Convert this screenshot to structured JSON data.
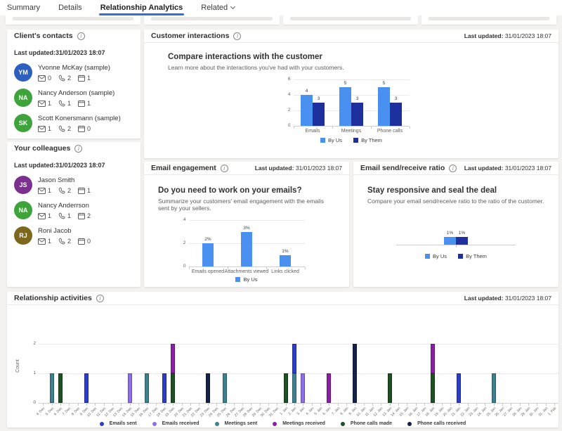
{
  "accent": "#2f6fdb",
  "tabs": [
    {
      "label": "Summary",
      "active": false
    },
    {
      "label": "Details",
      "active": false
    },
    {
      "label": "Relationship Analytics",
      "active": true
    },
    {
      "label": "Related",
      "active": false,
      "chevron": true
    }
  ],
  "clients_contacts": {
    "title": "Client's contacts",
    "last_updated": "Last updated:31/01/2023 18:07",
    "contacts": [
      {
        "initials": "YM",
        "color": "#2c5fbe",
        "name": "Yvonne McKay (sample)",
        "emails": "0",
        "calls": "2",
        "meetings": "1"
      },
      {
        "initials": "NA",
        "color": "#3fa33c",
        "name": "Nancy Anderson (sample)",
        "emails": "1",
        "calls": "1",
        "meetings": "1"
      },
      {
        "initials": "SK",
        "color": "#3fa33c",
        "name": "Scott Konersmann (sample)",
        "emails": "1",
        "calls": "2",
        "meetings": "0"
      }
    ]
  },
  "your_colleagues": {
    "title": "Your colleagues",
    "last_updated": "Last updated:31/01/2023 18:07",
    "contacts": [
      {
        "initials": "JS",
        "color": "#7b2f8e",
        "name": "Jason Smith",
        "emails": "1",
        "calls": "2",
        "meetings": "1"
      },
      {
        "initials": "NA",
        "color": "#3fa33c",
        "name": "Nancy Anderrson",
        "emails": "1",
        "calls": "1",
        "meetings": "2"
      },
      {
        "initials": "RJ",
        "color": "#7d671c",
        "name": "Roni Jacob",
        "emails": "1",
        "calls": "2",
        "meetings": "0"
      }
    ]
  },
  "customer_interactions": {
    "title": "Customer interactions",
    "updated_label": "Last updated:",
    "updated_value": "31/01/2023 18:07",
    "headline": "Compare interactions with the customer",
    "desc": "Learn more about the interactions you've had with your customers."
  },
  "email_engagement": {
    "title": "Email engagement",
    "updated_label": "Last updated:",
    "updated_value": "31/01/2023 18:07",
    "headline": "Do you need to work on your emails?",
    "desc": "Summarize your customers' email engagement with the emails sent by your sellers."
  },
  "send_receive": {
    "title": "Email send/receive ratio",
    "updated_label": "Last updated:",
    "updated_value": "31/01/2023 18:07",
    "headline": "Stay responsive and seal the deal",
    "desc": "Compare your email send/receive ratio to the ratio of the customer."
  },
  "relationship_activities": {
    "title": "Relationship activities",
    "updated_label": "Last updated:",
    "updated_value": "31/01/2023 18:07"
  },
  "chart_data": [
    {
      "id": "customer_interactions",
      "type": "bar",
      "title": "Compare interactions with the customer",
      "categories": [
        "Emails",
        "Meetings",
        "Phone calls"
      ],
      "series": [
        {
          "name": "By Us",
          "color": "#4a90f0",
          "values": [
            4,
            5,
            5
          ],
          "labels": [
            "4",
            "5",
            "5"
          ]
        },
        {
          "name": "By Them",
          "color": "#1e2f9e",
          "values": [
            3,
            3,
            3
          ],
          "labels": [
            "3",
            "3",
            "3"
          ]
        }
      ],
      "ylim": [
        0,
        6
      ],
      "yticks": [
        0,
        2,
        4,
        6
      ],
      "grid": true,
      "legend_position": "bottom"
    },
    {
      "id": "email_engagement",
      "type": "bar",
      "title": "Do you need to work on your emails?",
      "categories": [
        "Emails opened",
        "Attachments viewed",
        "Links clicked"
      ],
      "series": [
        {
          "name": "By Us",
          "color": "#4a90f0",
          "values": [
            2,
            3,
            1
          ],
          "labels": [
            "2%",
            "3%",
            "1%"
          ]
        }
      ],
      "ylim": [
        0,
        4
      ],
      "yticks": [
        0,
        2,
        4
      ],
      "grid": true,
      "legend_position": "bottom"
    },
    {
      "id": "send_receive_ratio",
      "type": "bar",
      "title": "Stay responsive and seal the deal",
      "categories": [
        ""
      ],
      "series": [
        {
          "name": "By Us",
          "color": "#4a90f0",
          "values": [
            1
          ],
          "labels": [
            "1%"
          ]
        },
        {
          "name": "By Them",
          "color": "#1e2f9e",
          "values": [
            1
          ],
          "labels": [
            "1%"
          ]
        }
      ],
      "ylim": [
        0,
        2.4
      ],
      "yticks": [],
      "grid": false,
      "legend_position": "bottom"
    },
    {
      "id": "relationship_activities",
      "type": "bar",
      "title": "Relationship activities",
      "ylabel": "Count",
      "ylim": [
        0,
        2.4
      ],
      "yticks": [
        0,
        1,
        2
      ],
      "grid": true,
      "legend_position": "bottom",
      "categories": [
        "4. Dec",
        "5. Dec",
        "6. Dec",
        "7. Dec",
        "8. Dec",
        "9. Dec",
        "10. Dec",
        "11. Dec",
        "12. Dec",
        "13. Dec",
        "14. Dec",
        "15. Dec",
        "16. Dec",
        "17. Dec",
        "18. Dec",
        "19. Dec",
        "20. Dec",
        "21. Dec",
        "22. Dec",
        "23. Dec",
        "24. Dec",
        "25. Dec",
        "26. Dec",
        "27. Dec",
        "28. Dec",
        "29. Dec",
        "30. Dec",
        "31. Dec",
        "1. Jan",
        "2. Jan",
        "3. Jan",
        "4. Jan",
        "5. Jan",
        "6. Jan",
        "7. Jan",
        "8. Jan",
        "9. Jan",
        "10. Jan",
        "11. Jan",
        "12. Jan",
        "13. Jan",
        "14. Jan",
        "15. Jan",
        "16. Jan",
        "17. Jan",
        "18. Jan",
        "19. Jan",
        "20. Jan",
        "21. Jan",
        "22. Jan",
        "23. Jan",
        "24. Jan",
        "25. Jan",
        "26. Jan",
        "27. Jan",
        "28. Jan",
        "29. Jan",
        "30. Jan",
        "31. Jan",
        "1. Feb"
      ],
      "legend": [
        "Emails sent",
        "Emails received",
        "Meetings sent",
        "Meetings received",
        "Phone calls made",
        "Phone calls received"
      ],
      "colors": {
        "Emails sent": "#2c3dc6",
        "Emails received": "#8f6fe8",
        "Meetings sent": "#3e7f90",
        "Meetings received": "#8a1fa5",
        "Phone calls made": "#1d5023",
        "Phone calls received": "#152248"
      },
      "bars": [
        {
          "date": "5. Dec",
          "segments": [
            {
              "series": "Meetings sent",
              "value": 1
            }
          ]
        },
        {
          "date": "6. Dec",
          "segments": [
            {
              "series": "Phone calls made",
              "value": 1
            }
          ]
        },
        {
          "date": "9. Dec",
          "segments": [
            {
              "series": "Emails sent",
              "value": 1
            }
          ]
        },
        {
          "date": "14. Dec",
          "segments": [
            {
              "series": "Emails received",
              "value": 1
            }
          ]
        },
        {
          "date": "16. Dec",
          "segments": [
            {
              "series": "Meetings sent",
              "value": 1
            }
          ]
        },
        {
          "date": "18. Dec",
          "segments": [
            {
              "series": "Emails sent",
              "value": 1
            }
          ]
        },
        {
          "date": "19. Dec",
          "segments": [
            {
              "series": "Phone calls made",
              "value": 1
            },
            {
              "series": "Meetings received",
              "value": 1
            }
          ]
        },
        {
          "date": "23. Dec",
          "segments": [
            {
              "series": "Phone calls received",
              "value": 1
            }
          ]
        },
        {
          "date": "25. Dec",
          "segments": [
            {
              "series": "Meetings sent",
              "value": 1
            }
          ]
        },
        {
          "date": "1. Jan",
          "segments": [
            {
              "series": "Phone calls made",
              "value": 1
            }
          ]
        },
        {
          "date": "2. Jan",
          "segments": [
            {
              "series": "Meetings sent",
              "value": 1
            },
            {
              "series": "Emails sent",
              "value": 1
            }
          ]
        },
        {
          "date": "3. Jan",
          "segments": [
            {
              "series": "Emails received",
              "value": 1
            }
          ]
        },
        {
          "date": "6. Jan",
          "segments": [
            {
              "series": "Meetings received",
              "value": 1
            }
          ]
        },
        {
          "date": "9. Jan",
          "segments": [
            {
              "series": "Phone calls received",
              "value": 2
            }
          ]
        },
        {
          "date": "13. Jan",
          "segments": [
            {
              "series": "Phone calls made",
              "value": 1
            }
          ]
        },
        {
          "date": "18. Jan",
          "segments": [
            {
              "series": "Phone calls made",
              "value": 1
            },
            {
              "series": "Meetings received",
              "value": 1
            }
          ]
        },
        {
          "date": "21. Jan",
          "segments": [
            {
              "series": "Emails sent",
              "value": 1
            }
          ]
        },
        {
          "date": "25. Jan",
          "segments": [
            {
              "series": "Meetings sent",
              "value": 1
            }
          ]
        }
      ]
    }
  ]
}
